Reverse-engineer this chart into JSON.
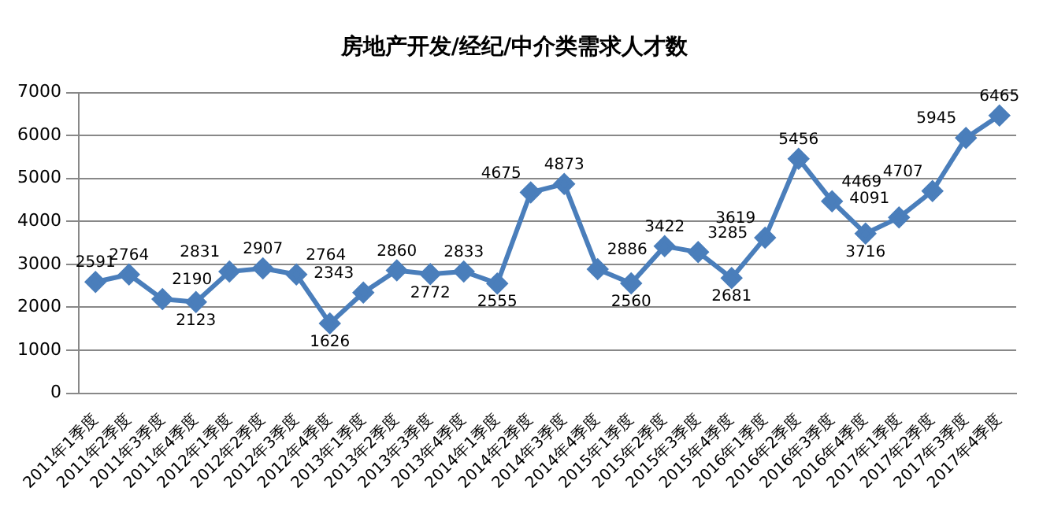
{
  "chart_data": {
    "type": "line",
    "title": "房地产开发/经纪/中介类需求人才数",
    "categories": [
      "2011年1季度",
      "2011年2季度",
      "2011年3季度",
      "2011年4季度",
      "2012年1季度",
      "2012年2季度",
      "2012年3季度",
      "2012年4季度",
      "2013年1季度",
      "2013年2季度",
      "2013年3季度",
      "2013年4季度",
      "2014年1季度",
      "2014年2季度",
      "2014年3季度",
      "2014年4季度",
      "2015年1季度",
      "2015年2季度",
      "2015年3季度",
      "2015年4季度",
      "2016年1季度",
      "2016年2季度",
      "2016年3季度",
      "2016年4季度",
      "2017年1季度",
      "2017年2季度",
      "2017年3季度",
      "2017年4季度"
    ],
    "series": [
      {
        "color": "#4a7ebb",
        "values": [
          2591,
          2764,
          2190,
          2123,
          2831,
          2907,
          2764,
          1626,
          2343,
          2860,
          2772,
          2833,
          2555,
          4675,
          4873,
          2886,
          2560,
          3422,
          3285,
          2681,
          3619,
          5456,
          4469,
          3716,
          4091,
          4707,
          5945,
          6465
        ]
      }
    ],
    "ylim": [
      0,
      7000
    ],
    "yticks": [
      0,
      1000,
      2000,
      3000,
      4000,
      5000,
      6000,
      7000
    ],
    "grid": "y",
    "legend": false,
    "marker": "diamond",
    "line_style": "solid",
    "data_labels": true
  }
}
